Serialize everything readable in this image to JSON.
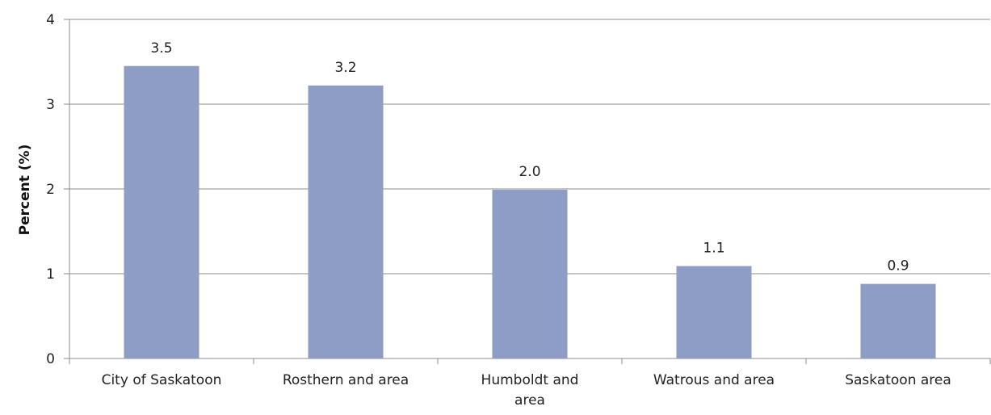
{
  "chart_data": {
    "type": "bar",
    "categories": [
      "City of Saskatoon",
      "Rosthern and area",
      "Humboldt and area",
      "Watrous and area",
      "Saskatoon area"
    ],
    "category_lines": [
      [
        "City of Saskatoon"
      ],
      [
        "Rosthern and area"
      ],
      [
        "Humboldt and",
        "area"
      ],
      [
        "Watrous and area"
      ],
      [
        "Saskatoon area"
      ]
    ],
    "values": [
      3.45,
      3.22,
      1.99,
      1.09,
      0.88
    ],
    "data_labels": [
      "3.5",
      "3.2",
      "2.0",
      "1.1",
      "0.9"
    ],
    "title": "",
    "xlabel": "",
    "ylabel": "Percent (%)",
    "ylim": [
      0,
      4
    ],
    "yticks": [
      0,
      1,
      2,
      3,
      4
    ],
    "grid": true,
    "legend": "none",
    "bar_color": "#8e9dc6"
  }
}
